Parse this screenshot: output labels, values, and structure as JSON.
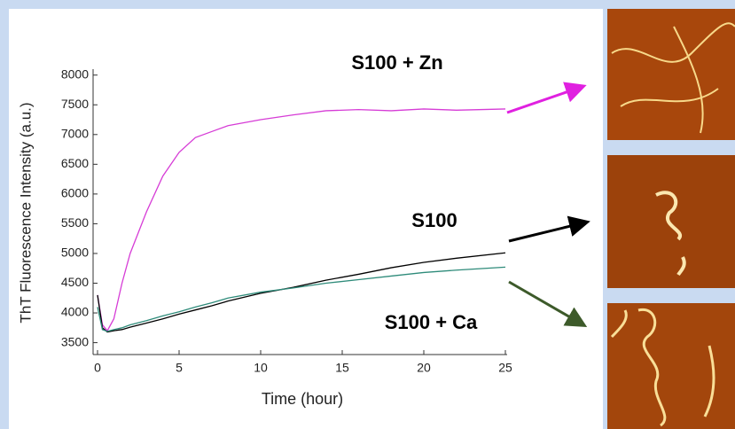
{
  "chart_data": {
    "type": "line",
    "xlabel": "Time (hour)",
    "ylabel": "ThT Fluorescence Intensity (a.u.)",
    "x": [
      0,
      0.3,
      0.6,
      1,
      1.5,
      2,
      3,
      4,
      5,
      6,
      7,
      8,
      10,
      12,
      14,
      16,
      18,
      20,
      22,
      25
    ],
    "series": [
      {
        "name": "S100 + Zn",
        "color": "#d63cd6",
        "values": [
          4300,
          3800,
          3700,
          3900,
          4500,
          5000,
          5700,
          6300,
          6700,
          6950,
          7050,
          7150,
          7250,
          7330,
          7400,
          7420,
          7400,
          7430,
          7410,
          7430
        ]
      },
      {
        "name": "S100",
        "color": "#000000",
        "values": [
          4300,
          3750,
          3680,
          3700,
          3720,
          3760,
          3830,
          3900,
          3980,
          4050,
          4120,
          4200,
          4330,
          4430,
          4550,
          4650,
          4760,
          4850,
          4920,
          5010
        ]
      },
      {
        "name": "S100 + Ca",
        "color": "#2e8b7a",
        "values": [
          4100,
          3720,
          3690,
          3720,
          3750,
          3800,
          3870,
          3950,
          4020,
          4100,
          4170,
          4250,
          4350,
          4420,
          4500,
          4560,
          4620,
          4680,
          4720,
          4770
        ]
      }
    ],
    "xlim": [
      0,
      25
    ],
    "xticks": [
      0,
      5,
      10,
      15,
      20,
      25
    ],
    "ylim": [
      3300,
      8100
    ],
    "yticks": [
      3500,
      4000,
      4500,
      5000,
      5500,
      6000,
      6500,
      7000,
      7500,
      8000
    ],
    "grid": false
  }
}
